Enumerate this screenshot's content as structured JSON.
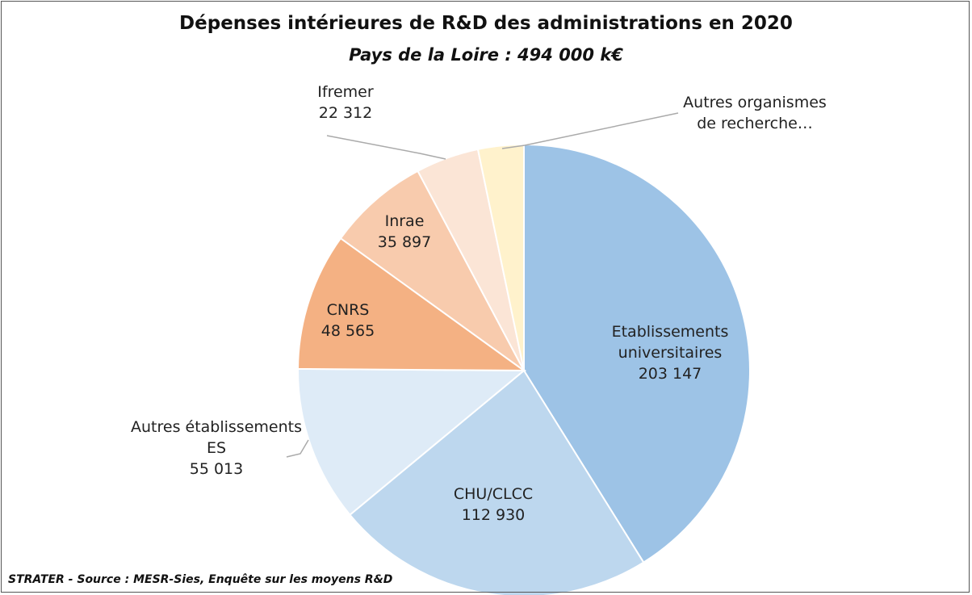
{
  "chart_data": {
    "type": "pie",
    "title": "Dépenses intérieures de R&D des administrations en 2020",
    "subtitle": "Pays de la Loire : 494 000 k€",
    "source": "STRATER - Source : MESR-Sies, Enquête sur les moyens R&D",
    "categories": [
      "Etablissements universitaires",
      "CHU/CLCC",
      "Autres établissements ES",
      "CNRS",
      "Inrae",
      "Ifremer",
      "Autres organismes de recherche…"
    ],
    "values": [
      203147,
      112930,
      55013,
      48565,
      35897,
      22312,
      16136
    ],
    "value_labels": [
      "203 147",
      "112 930",
      "55 013",
      "48 565",
      "35 897",
      "22 312",
      null
    ],
    "colors": [
      "#9dc3e6",
      "#bdd7ee",
      "#deebf7",
      "#f4b183",
      "#f8cbad",
      "#fbe5d6",
      "#fff2cc"
    ]
  }
}
